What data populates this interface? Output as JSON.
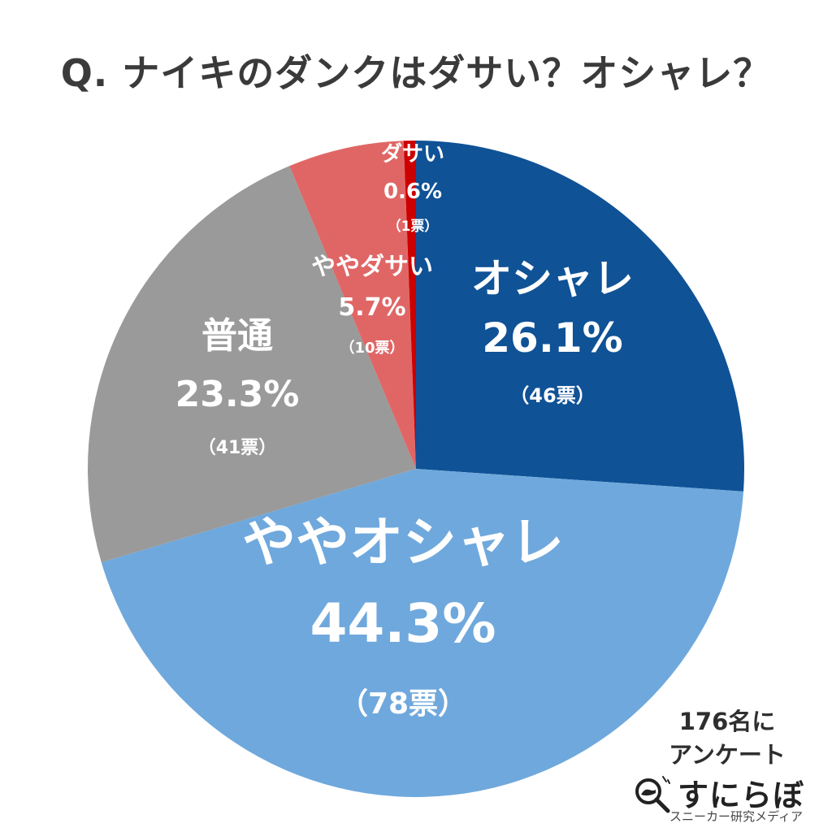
{
  "title": "Q. ナイキのダンクはダサい？オシャレ？",
  "note": {
    "line1": "176名に",
    "line2": "アンケート"
  },
  "logo": {
    "name": "すにらぼ",
    "tagline": "スニーカー研究メディア",
    "icon": "magnifier-sneaker-icon"
  },
  "chart_data": {
    "type": "pie",
    "title": "Q. ナイキのダンクはダサい？オシャレ？",
    "start": "12 o'clock, clockwise",
    "slices": [
      {
        "label": "オシャレ",
        "percent_label": "26.1%",
        "votes_label": "（46票）",
        "value": 26.1,
        "votes": 46,
        "color": "#0f5296",
        "text_color": "#ffffff"
      },
      {
        "label": "ややオシャレ",
        "percent_label": "44.3%",
        "votes_label": "（78票）",
        "value": 44.3,
        "votes": 78,
        "color": "#6fa8dc",
        "text_color": "#ffffff"
      },
      {
        "label": "普通",
        "percent_label": "23.3%",
        "votes_label": "（41票）",
        "value": 23.3,
        "votes": 41,
        "color": "#9a9a9a",
        "text_color": "#ffffff"
      },
      {
        "label": "ややダサい",
        "percent_label": "5.7%",
        "votes_label": "（10票）",
        "value": 5.7,
        "votes": 10,
        "color": "#e06666",
        "text_color": "#ffffff"
      },
      {
        "label": "ダサい",
        "percent_label": "0.6%",
        "votes_label": "（1票）",
        "value": 0.6,
        "votes": 1,
        "color": "#cc0000",
        "text_color": "#ffffff"
      }
    ],
    "total_votes": 176
  }
}
